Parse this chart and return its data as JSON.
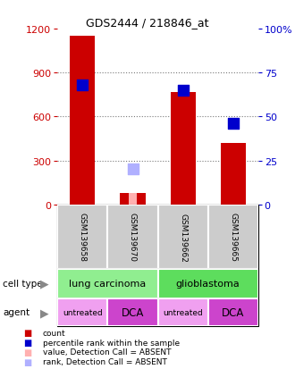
{
  "title": "GDS2444 / 218846_at",
  "samples": [
    "GSM139658",
    "GSM139670",
    "GSM139662",
    "GSM139665"
  ],
  "count_values": [
    1150,
    75,
    770,
    420
  ],
  "rank_pct": [
    68,
    null,
    65,
    46
  ],
  "absent_value_values": [
    null,
    75,
    null,
    null
  ],
  "absent_rank_pct": [
    null,
    20,
    null,
    null
  ],
  "count_color": "#cc0000",
  "rank_color": "#0000cc",
  "absent_value_color": "#ffb0b0",
  "absent_rank_color": "#b0b0ff",
  "ylim_left": [
    0,
    1200
  ],
  "ylim_right": [
    0,
    100
  ],
  "yticks_left": [
    0,
    300,
    600,
    900,
    1200
  ],
  "yticks_right": [
    0,
    25,
    50,
    75,
    100
  ],
  "cell_type_groups": [
    {
      "label": "lung carcinoma",
      "cols": [
        0,
        1
      ],
      "color": "#90ee90"
    },
    {
      "label": "glioblastoma",
      "cols": [
        2,
        3
      ],
      "color": "#5ddd5d"
    }
  ],
  "agent_groups": [
    {
      "label": "untreated",
      "col": 0,
      "color": "#f0a0f0"
    },
    {
      "label": "DCA",
      "col": 1,
      "color": "#cc44cc"
    },
    {
      "label": "untreated",
      "col": 2,
      "color": "#f0a0f0"
    },
    {
      "label": "DCA",
      "col": 3,
      "color": "#cc44cc"
    }
  ],
  "count_bar_width": 0.5,
  "marker_size": 70,
  "background_color": "#ffffff",
  "grid_color": "#777777",
  "sample_box_color": "#cccccc"
}
